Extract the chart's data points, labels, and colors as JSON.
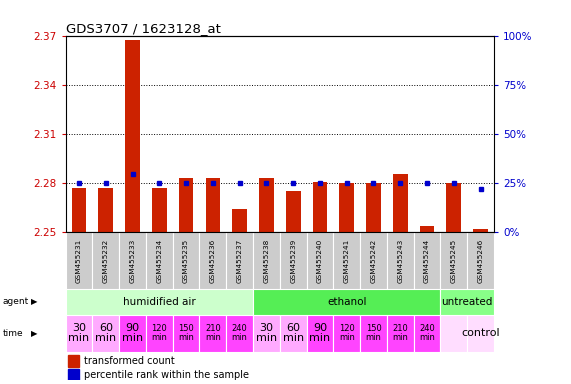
{
  "title": "GDS3707 / 1623128_at",
  "samples": [
    "GSM455231",
    "GSM455232",
    "GSM455233",
    "GSM455234",
    "GSM455235",
    "GSM455236",
    "GSM455237",
    "GSM455238",
    "GSM455239",
    "GSM455240",
    "GSM455241",
    "GSM455242",
    "GSM455243",
    "GSM455244",
    "GSM455245",
    "GSM455246"
  ],
  "red_values": [
    2.277,
    2.277,
    2.368,
    2.277,
    2.283,
    2.283,
    2.264,
    2.283,
    2.275,
    2.281,
    2.28,
    2.28,
    2.286,
    2.254,
    2.28,
    2.252
  ],
  "blue_values": [
    25,
    25,
    30,
    25,
    25,
    25,
    25,
    25,
    25,
    25,
    25,
    25,
    25,
    25,
    25,
    22
  ],
  "ylim_left": [
    2.25,
    2.37
  ],
  "ylim_right": [
    0,
    100
  ],
  "yticks_left": [
    2.25,
    2.28,
    2.31,
    2.34,
    2.37
  ],
  "yticks_right": [
    0,
    25,
    50,
    75,
    100
  ],
  "ytick_labels_right": [
    "0%",
    "25%",
    "50%",
    "75%",
    "100%"
  ],
  "bar_color": "#cc2200",
  "dot_color": "#0000cc",
  "grid_color": "#000000",
  "bg_color": "#ffffff",
  "agent_groups": [
    {
      "label": "humidified air",
      "start": 0,
      "end": 7,
      "color": "#ccffcc"
    },
    {
      "label": "ethanol",
      "start": 7,
      "end": 14,
      "color": "#55ee55"
    },
    {
      "label": "untreated",
      "start": 14,
      "end": 16,
      "color": "#88ff88"
    }
  ],
  "time_colors_per_sample": [
    "#ffaaff",
    "#ffaaff",
    "#ff44ff",
    "#ff44ff",
    "#ff44ff",
    "#ff44ff",
    "#ff44ff",
    "#ffaaff",
    "#ffaaff",
    "#ff44ff",
    "#ff44ff",
    "#ff44ff",
    "#ff44ff",
    "#ff44ff",
    "#ffddff",
    "#ffddff"
  ],
  "time_labels_raw": [
    "30\nmin",
    "60\nmin",
    "90\nmin",
    "120\nmin",
    "150\nmin",
    "210\nmin",
    "240\nmin",
    "30\nmin",
    "60\nmin",
    "90\nmin",
    "120\nmin",
    "150\nmin",
    "210\nmin",
    "240\nmin",
    "",
    "control"
  ],
  "time_fontsizes": [
    8,
    8,
    8,
    6,
    6,
    6,
    6,
    8,
    8,
    8,
    6,
    6,
    6,
    6,
    0,
    8
  ],
  "label_color_left": "#cc0000",
  "label_color_right": "#0000cc",
  "sample_bg": "#cccccc",
  "legend_texts": [
    "transformed count",
    "percentile rank within the sample"
  ]
}
